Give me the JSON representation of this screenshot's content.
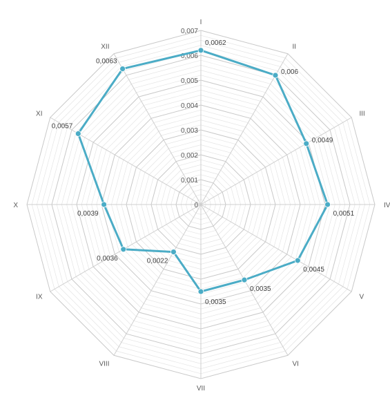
{
  "chart_data": {
    "type": "radar",
    "title": "",
    "categories": [
      "I",
      "II",
      "III",
      "IV",
      "V",
      "VI",
      "VII",
      "VIII",
      "IX",
      "X",
      "XI",
      "XII"
    ],
    "series": [
      {
        "values": [
          0.0062,
          0.006,
          0.0049,
          0.0051,
          0.0045,
          0.0035,
          0.0035,
          0.0022,
          0.0036,
          0.0039,
          0.0057,
          0.0063
        ],
        "data_labels": [
          "0,0062",
          "0,006",
          "0,0049",
          "0,0051",
          "0,0045",
          "0,0035",
          "0,0035",
          "0,0022",
          "0,0036",
          "0,0039",
          "0,0057",
          "0,0063"
        ],
        "color": "#4bacc6"
      }
    ],
    "axis": {
      "min": 0,
      "max": 0.007,
      "ticks": [
        0,
        0.001,
        0.002,
        0.003,
        0.004,
        0.005,
        0.006,
        0.007
      ],
      "tick_labels": [
        "0",
        "0,001",
        "0,002",
        "0,003",
        "0,004",
        "0,005",
        "0,006",
        "0,007"
      ],
      "minor_step": 0.0002
    },
    "grid": true,
    "legend": "none",
    "colors": {
      "series": "#4bacc6",
      "grid": "#d9d9d9",
      "text": "#595959"
    }
  }
}
